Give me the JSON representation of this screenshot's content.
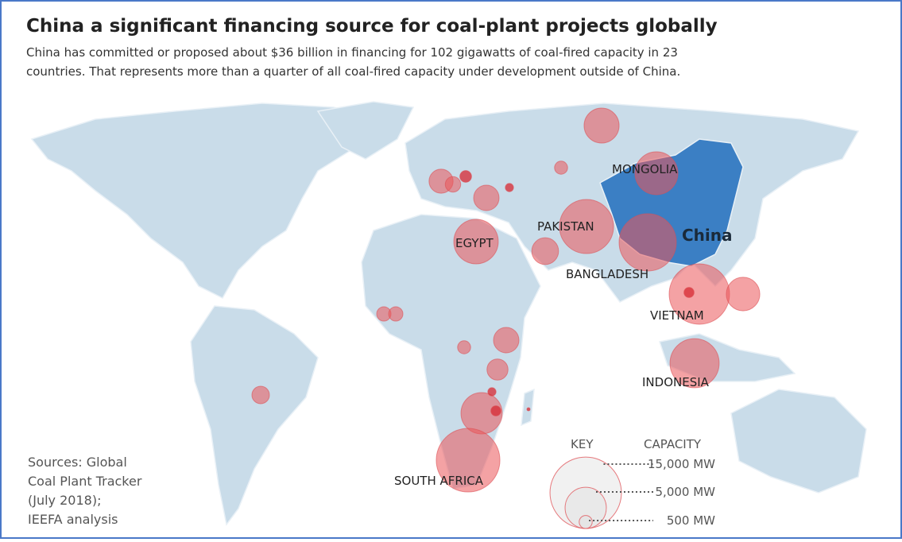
{
  "title": "China a significant financing source for coal-plant projects globally",
  "subtitle_lines": [
    "China has committed or proposed about $36 billion in financing for 102 gigawatts of coal-fired capacity in 23",
    "countries. That represents more than a quarter of all coal-fired capacity under development outside of China."
  ],
  "labels": {
    "china": "China",
    "countries": [
      "MONGOLIA",
      "PAKISTAN",
      "EGYPT",
      "BANGLADESH",
      "VIETNAM",
      "INDONESIA",
      "SOUTH AFRICA"
    ]
  },
  "bubbles": {
    "capacity_mw": [
      3600,
      5400,
      500,
      1700,
      700,
      400,
      1900,
      200,
      5800,
      2100,
      8600,
      9600,
      10700,
      300,
      3300,
      7100,
      600,
      600,
      1900,
      500,
      1300,
      900,
      5000,
      300,
      200,
      11900,
      30
    ]
  },
  "key": {
    "title": "KEY",
    "header": "CAPACITY",
    "sizes": [
      {
        "value": 15000,
        "label": "15,000 MW"
      },
      {
        "value": 5000,
        "label": "5,000 MW"
      },
      {
        "value": 500,
        "label": "500 MW"
      }
    ]
  },
  "sources": [
    "Sources: Global",
    "Coal Plant Tracker",
    "(July 2018);",
    "IEEFA analysis"
  ]
}
